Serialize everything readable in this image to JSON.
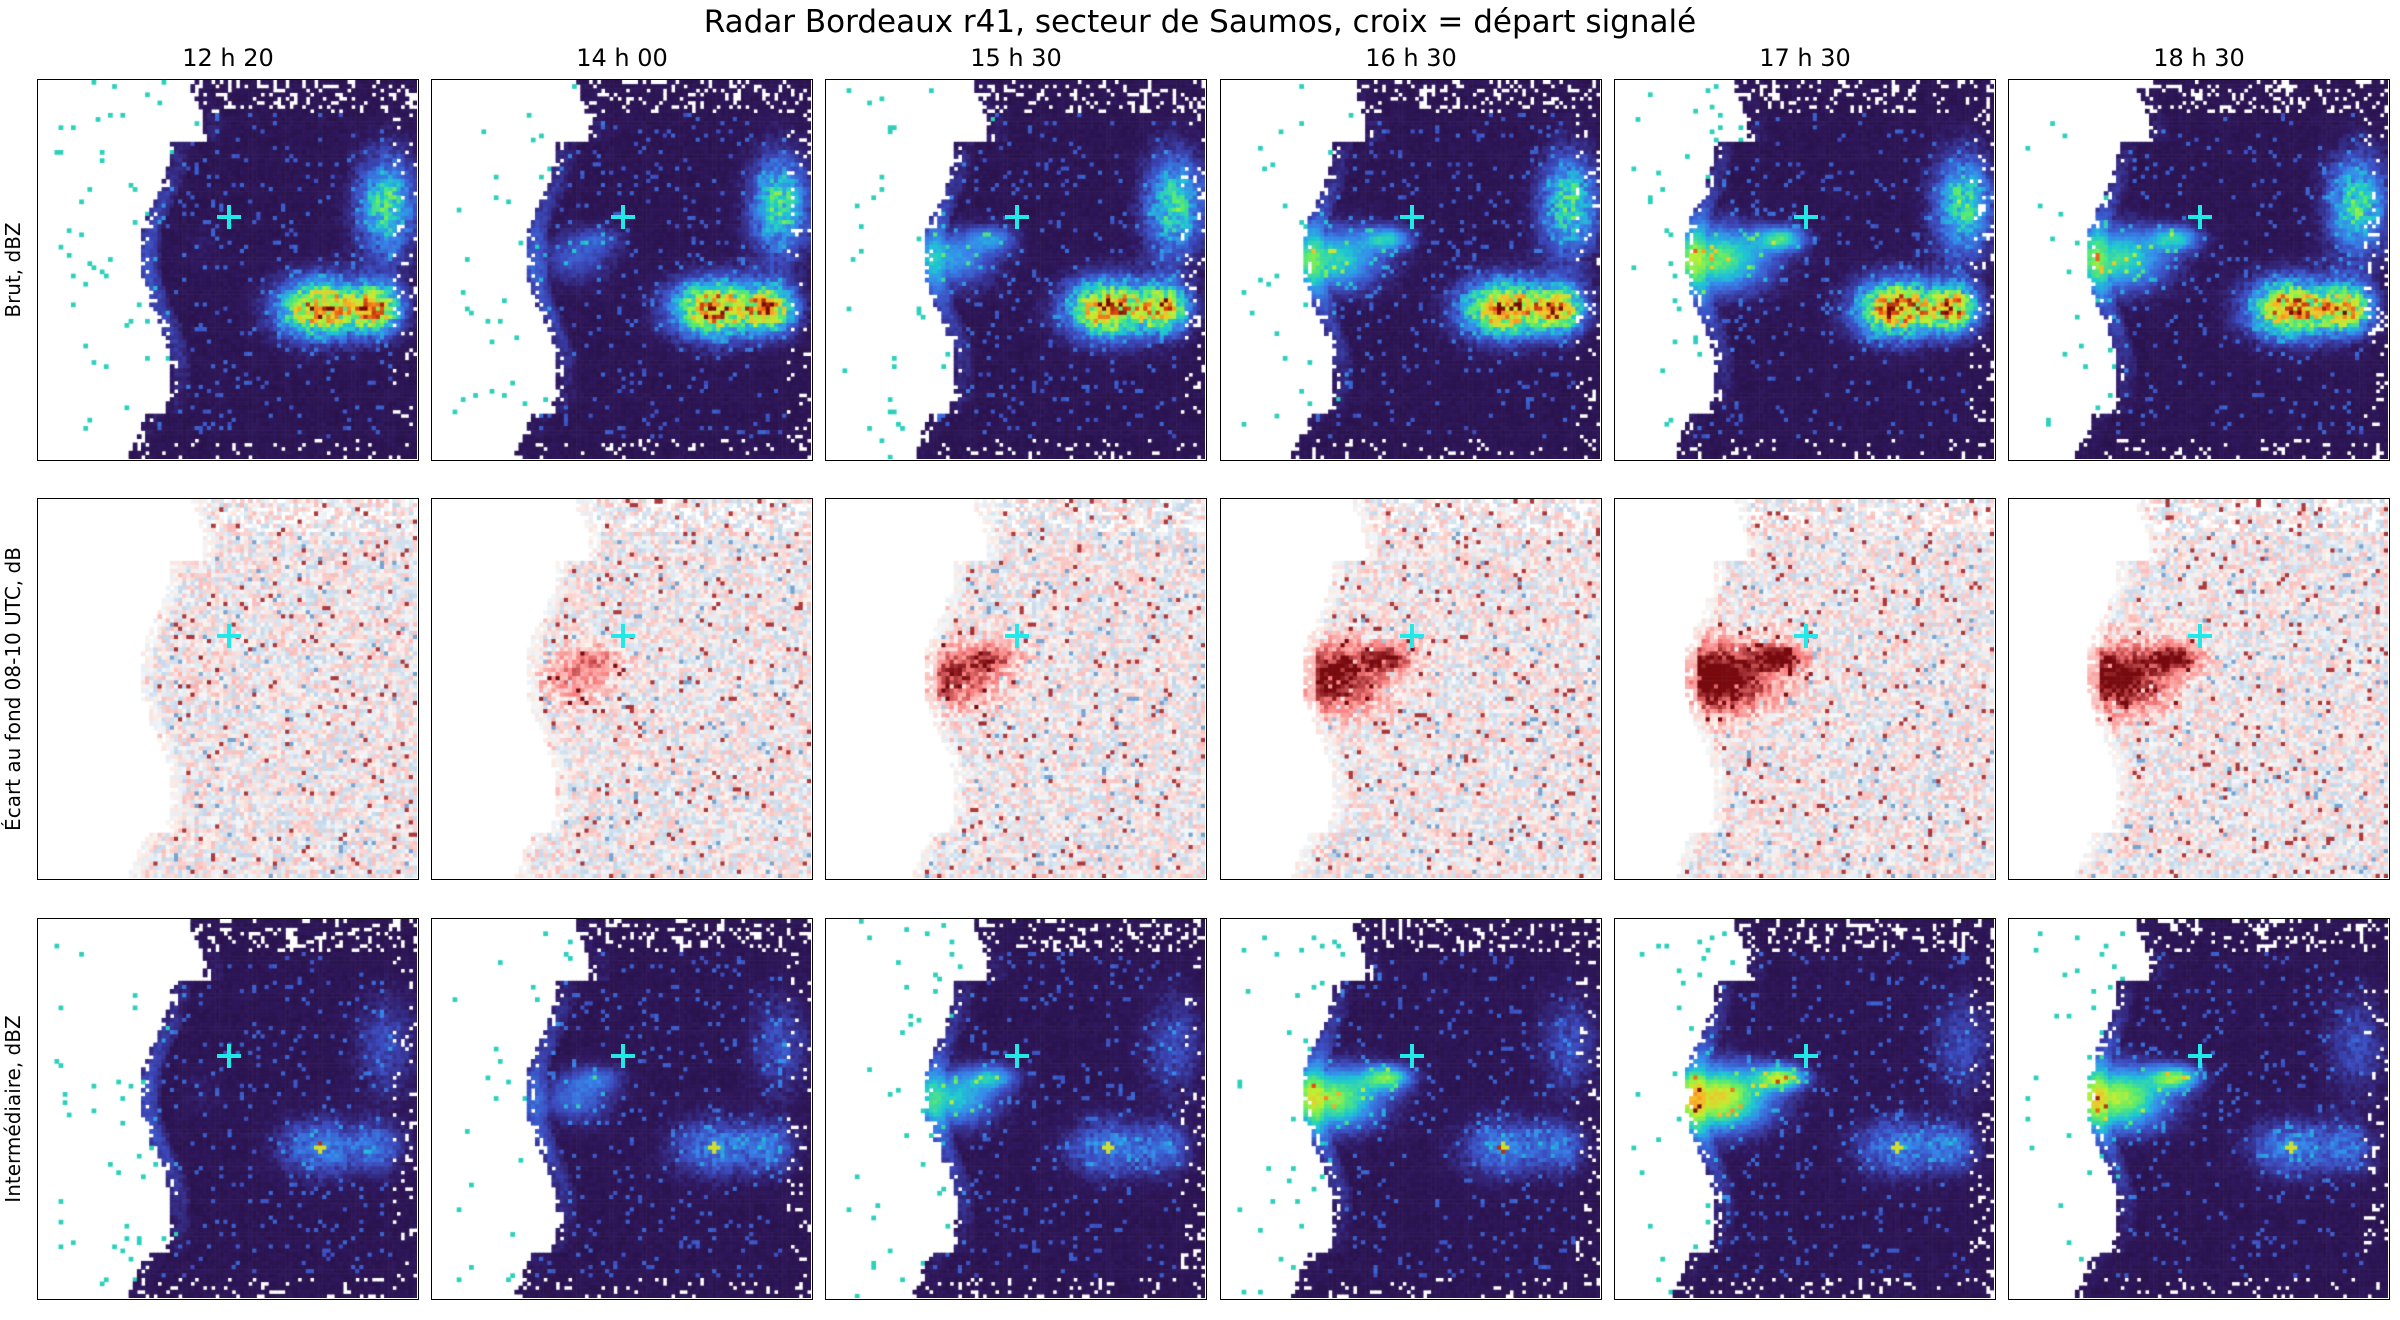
{
  "figure": {
    "title": "Radar Bordeaux r41, secteur de Saumos, croix = départ signalé"
  },
  "columns": [
    "12 h 20",
    "14 h 00",
    "15 h 30",
    "16 h 30",
    "17 h 30",
    "18 h 30"
  ],
  "rows": [
    {
      "label": "Brut, dBZ",
      "kind": "reflectivity",
      "colormap": "turbo-like"
    },
    {
      "label": "Écart au fond 08-10 UTC, dB",
      "kind": "difference",
      "colormap": "blue-white-red diverging"
    },
    {
      "label": "Intermédiaire, dBZ",
      "kind": "intermediate",
      "colormap": "turbo-like"
    }
  ],
  "marker": {
    "description": "croix = départ signalé",
    "color": "#22e8e8"
  },
  "plume_growth_by_column": [
    0.05,
    0.35,
    0.6,
    0.85,
    1.0,
    0.9
  ]
}
